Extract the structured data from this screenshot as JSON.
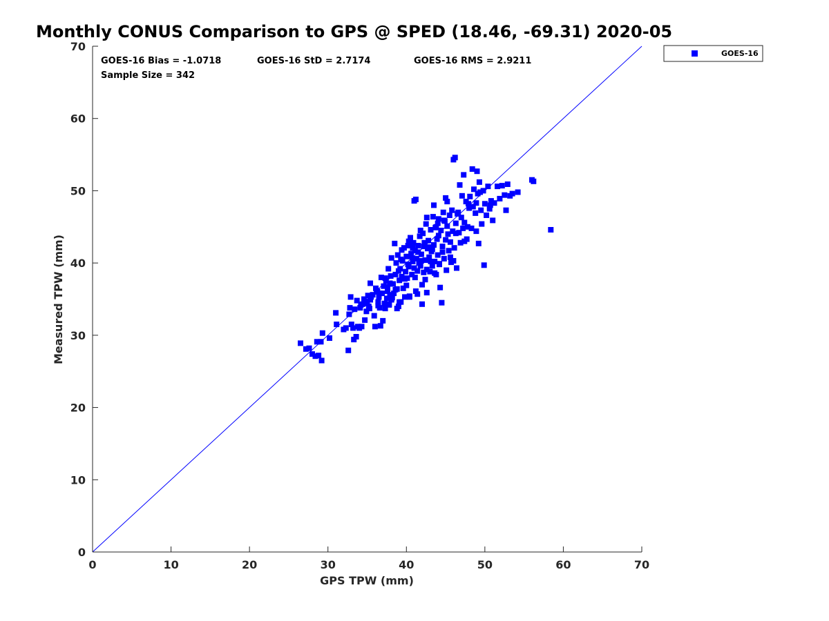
{
  "chart_data": {
    "type": "scatter",
    "title": "Monthly CONUS Comparison to GPS @ SPED (18.46, -69.31) 2020-05",
    "xlabel": "GPS TPW (mm)",
    "ylabel": "Measured TPW (mm)",
    "xlim": [
      0,
      70
    ],
    "ylim": [
      0,
      70
    ],
    "xticks": [
      0,
      10,
      20,
      30,
      40,
      50,
      60,
      70
    ],
    "yticks": [
      0,
      10,
      20,
      30,
      40,
      50,
      60,
      70
    ],
    "grid": false,
    "legend_position": "outside-top-right",
    "reference_line": {
      "from": [
        0,
        0
      ],
      "to": [
        70,
        70
      ],
      "color": "#0000ff"
    },
    "stats": {
      "bias": "GOES-16 Bias = -1.0718",
      "std": "GOES-16 StD = 2.7174",
      "rms": "GOES-16 RMS = 2.9211",
      "sample_size": "Sample Size = 342"
    },
    "series": [
      {
        "name": "GOES-16",
        "color": "#0000ff",
        "marker": "square",
        "points": [
          [
            26.5,
            28.9
          ],
          [
            27.2,
            28.1
          ],
          [
            27.6,
            28.2
          ],
          [
            28.0,
            27.4
          ],
          [
            28.4,
            27.1
          ],
          [
            28.6,
            29.1
          ],
          [
            28.8,
            27.2
          ],
          [
            29.1,
            29.1
          ],
          [
            29.2,
            26.5
          ],
          [
            29.3,
            30.3
          ],
          [
            30.2,
            29.6
          ],
          [
            31.0,
            33.1
          ],
          [
            31.1,
            31.5
          ],
          [
            32.0,
            30.8
          ],
          [
            32.3,
            31.0
          ],
          [
            32.6,
            27.9
          ],
          [
            32.7,
            32.9
          ],
          [
            32.8,
            33.8
          ],
          [
            32.9,
            35.3
          ],
          [
            33.0,
            31.5
          ],
          [
            33.2,
            31.0
          ],
          [
            33.3,
            29.4
          ],
          [
            33.4,
            33.6
          ],
          [
            33.6,
            29.8
          ],
          [
            33.7,
            34.8
          ],
          [
            33.8,
            31.2
          ],
          [
            34.0,
            31.0
          ],
          [
            34.1,
            33.8
          ],
          [
            34.3,
            31.2
          ],
          [
            34.4,
            34.3
          ],
          [
            34.6,
            35.0
          ],
          [
            34.7,
            32.1
          ],
          [
            34.8,
            34.6
          ],
          [
            34.9,
            33.3
          ],
          [
            35.1,
            35.5
          ],
          [
            35.2,
            34.0
          ],
          [
            35.3,
            33.7
          ],
          [
            35.4,
            37.2
          ],
          [
            35.5,
            35.3
          ],
          [
            35.7,
            35.6
          ],
          [
            35.9,
            32.7
          ],
          [
            36.0,
            31.2
          ],
          [
            36.1,
            36.5
          ],
          [
            36.3,
            36.1
          ],
          [
            36.4,
            34.6
          ],
          [
            36.5,
            35.3
          ],
          [
            36.6,
            33.8
          ],
          [
            36.7,
            31.3
          ],
          [
            36.8,
            38.0
          ],
          [
            36.9,
            35.8
          ],
          [
            37.0,
            32.0
          ],
          [
            37.1,
            36.8
          ],
          [
            37.2,
            34.4
          ],
          [
            37.3,
            33.7
          ],
          [
            37.4,
            37.5
          ],
          [
            37.5,
            35.1
          ],
          [
            37.6,
            36.1
          ],
          [
            37.7,
            39.2
          ],
          [
            37.8,
            34.3
          ],
          [
            37.9,
            35.6
          ],
          [
            38.0,
            38.2
          ],
          [
            38.1,
            34.9
          ],
          [
            38.2,
            35.2
          ],
          [
            38.3,
            37.1
          ],
          [
            38.4,
            35.8
          ],
          [
            38.5,
            42.7
          ],
          [
            38.6,
            36.3
          ],
          [
            38.7,
            40.0
          ],
          [
            38.8,
            33.7
          ],
          [
            38.9,
            41.1
          ],
          [
            39.0,
            34.0
          ],
          [
            39.1,
            37.6
          ],
          [
            39.2,
            39.2
          ],
          [
            39.3,
            34.6
          ],
          [
            39.4,
            38.1
          ],
          [
            39.5,
            40.3
          ],
          [
            39.6,
            36.5
          ],
          [
            39.7,
            42.1
          ],
          [
            39.8,
            35.3
          ],
          [
            39.9,
            38.8
          ],
          [
            40.0,
            40.9
          ],
          [
            40.1,
            37.9
          ],
          [
            40.2,
            42.4
          ],
          [
            40.3,
            39.5
          ],
          [
            40.4,
            35.3
          ],
          [
            40.5,
            43.5
          ],
          [
            40.6,
            41.3
          ],
          [
            40.7,
            38.4
          ],
          [
            40.8,
            40.2
          ],
          [
            40.9,
            42.8
          ],
          [
            41.0,
            39.3
          ],
          [
            41.1,
            41.7
          ],
          [
            41.2,
            36.1
          ],
          [
            41.3,
            40.6
          ],
          [
            41.4,
            38.9
          ],
          [
            41.5,
            42.4
          ],
          [
            41.6,
            40.0
          ],
          [
            41.7,
            43.7
          ],
          [
            41.8,
            39.6
          ],
          [
            41.9,
            41.2
          ],
          [
            42.0,
            37.0
          ],
          [
            42.1,
            44.1
          ],
          [
            42.2,
            38.7
          ],
          [
            42.3,
            42.8
          ],
          [
            42.4,
            40.4
          ],
          [
            42.5,
            45.4
          ],
          [
            42.6,
            39.1
          ],
          [
            42.7,
            42.0
          ],
          [
            42.8,
            43.1
          ],
          [
            42.9,
            40.8
          ],
          [
            43.0,
            38.8
          ],
          [
            43.1,
            44.6
          ],
          [
            43.2,
            41.6
          ],
          [
            43.3,
            39.6
          ],
          [
            43.4,
            46.4
          ],
          [
            43.5,
            42.5
          ],
          [
            43.6,
            40.2
          ],
          [
            43.7,
            44.9
          ],
          [
            43.8,
            38.4
          ],
          [
            43.9,
            43.3
          ],
          [
            44.0,
            41.1
          ],
          [
            44.1,
            46.1
          ],
          [
            44.2,
            39.9
          ],
          [
            44.3,
            36.6
          ],
          [
            44.4,
            44.5
          ],
          [
            44.5,
            34.5
          ],
          [
            44.6,
            42.3
          ],
          [
            44.7,
            47.0
          ],
          [
            44.8,
            40.6
          ],
          [
            44.9,
            45.8
          ],
          [
            45.0,
            43.2
          ],
          [
            45.1,
            39.0
          ],
          [
            45.2,
            48.5
          ],
          [
            45.3,
            44.0
          ],
          [
            45.4,
            41.7
          ],
          [
            45.5,
            46.6
          ],
          [
            45.6,
            42.9
          ],
          [
            45.7,
            40.1
          ],
          [
            45.8,
            47.3
          ],
          [
            45.9,
            44.4
          ],
          [
            46.0,
            54.3
          ],
          [
            46.1,
            42.1
          ],
          [
            46.2,
            54.6
          ],
          [
            46.3,
            45.5
          ],
          [
            46.4,
            39.3
          ],
          [
            46.6,
            47.0
          ],
          [
            46.7,
            44.2
          ],
          [
            46.8,
            50.8
          ],
          [
            46.9,
            42.8
          ],
          [
            47.0,
            46.3
          ],
          [
            47.1,
            49.3
          ],
          [
            47.2,
            44.8
          ],
          [
            47.3,
            52.2
          ],
          [
            47.4,
            43.0
          ],
          [
            47.6,
            48.5
          ],
          [
            47.8,
            45.0
          ],
          [
            48.0,
            47.6
          ],
          [
            48.1,
            49.2
          ],
          [
            48.3,
            44.8
          ],
          [
            48.4,
            53.0
          ],
          [
            48.5,
            47.8
          ],
          [
            48.6,
            50.2
          ],
          [
            48.8,
            46.9
          ],
          [
            48.9,
            44.4
          ],
          [
            49.0,
            52.7
          ],
          [
            49.1,
            49.6
          ],
          [
            49.2,
            42.7
          ],
          [
            49.3,
            51.2
          ],
          [
            49.5,
            47.3
          ],
          [
            49.6,
            45.4
          ],
          [
            49.8,
            50.0
          ],
          [
            49.9,
            39.7
          ],
          [
            50.0,
            48.2
          ],
          [
            50.2,
            46.6
          ],
          [
            50.4,
            50.6
          ],
          [
            50.6,
            47.5
          ],
          [
            50.8,
            48.6
          ],
          [
            51.0,
            45.9
          ],
          [
            51.2,
            48.3
          ],
          [
            51.6,
            50.6
          ],
          [
            51.9,
            48.9
          ],
          [
            52.2,
            50.7
          ],
          [
            52.5,
            49.4
          ],
          [
            52.7,
            47.3
          ],
          [
            52.9,
            50.9
          ],
          [
            53.2,
            49.3
          ],
          [
            53.5,
            49.6
          ],
          [
            54.2,
            49.8
          ],
          [
            56.0,
            51.5
          ],
          [
            56.2,
            51.3
          ],
          [
            58.4,
            44.6
          ],
          [
            41.0,
            48.6
          ],
          [
            41.2,
            48.8
          ],
          [
            43.5,
            48.0
          ],
          [
            44.0,
            45.5
          ],
          [
            45.0,
            49.0
          ],
          [
            40.3,
            43.0
          ],
          [
            41.8,
            44.5
          ],
          [
            42.6,
            46.3
          ],
          [
            43.8,
            45.0
          ],
          [
            44.8,
            45.9
          ],
          [
            46.3,
            44.1
          ],
          [
            47.7,
            43.3
          ],
          [
            39.4,
            41.8
          ],
          [
            40.8,
            42.1
          ],
          [
            42.2,
            42.3
          ],
          [
            43.3,
            41.9
          ],
          [
            44.6,
            41.5
          ],
          [
            38.1,
            40.7
          ],
          [
            39.3,
            40.5
          ],
          [
            40.6,
            40.9
          ],
          [
            41.9,
            40.3
          ],
          [
            43.1,
            40.2
          ],
          [
            44.2,
            39.8
          ],
          [
            45.6,
            40.8
          ],
          [
            37.3,
            37.9
          ],
          [
            38.6,
            38.4
          ],
          [
            39.8,
            37.8
          ],
          [
            41.1,
            38.0
          ],
          [
            42.4,
            37.7
          ],
          [
            43.6,
            38.6
          ],
          [
            36.2,
            36.0
          ],
          [
            37.6,
            36.7
          ],
          [
            38.8,
            36.4
          ],
          [
            40.0,
            36.9
          ],
          [
            41.4,
            35.7
          ],
          [
            42.6,
            35.9
          ],
          [
            35.0,
            34.4
          ],
          [
            36.4,
            34.1
          ],
          [
            37.8,
            34.2
          ],
          [
            39.1,
            34.6
          ],
          [
            40.4,
            35.4
          ],
          [
            42.0,
            34.3
          ],
          [
            46.0,
            40.3
          ],
          [
            47.4,
            45.6
          ],
          [
            48.9,
            48.3
          ],
          [
            50.7,
            48.0
          ],
          [
            49.4,
            49.8
          ],
          [
            47.9,
            48.2
          ],
          [
            46.5,
            46.8
          ],
          [
            45.2,
            45.1
          ],
          [
            44.1,
            43.8
          ],
          [
            42.8,
            42.2
          ],
          [
            41.5,
            41.5
          ],
          [
            40.2,
            39.8
          ],
          [
            39.0,
            38.9
          ],
          [
            37.9,
            37.2
          ],
          [
            36.6,
            35.8
          ],
          [
            35.4,
            34.9
          ],
          [
            34.2,
            34.2
          ]
        ]
      }
    ]
  }
}
